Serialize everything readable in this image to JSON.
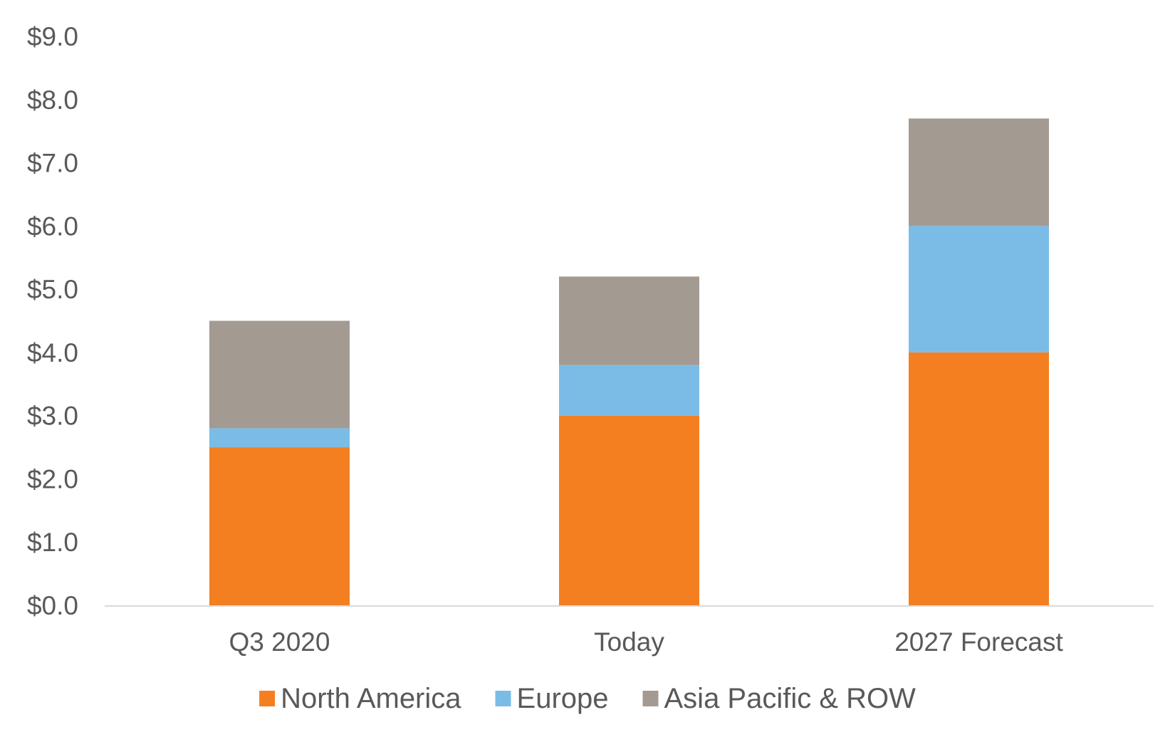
{
  "chart_data": {
    "type": "bar",
    "stacked": true,
    "title": "",
    "xlabel": "",
    "ylabel": "",
    "categories": [
      "Q3 2020",
      "Today",
      "2027 Forecast"
    ],
    "series": [
      {
        "name": "North America",
        "color": "#F47F21",
        "values": [
          2.5,
          3.0,
          4.0
        ]
      },
      {
        "name": "Europe",
        "color": "#7BBCE7",
        "values": [
          0.3,
          0.8,
          2.0
        ]
      },
      {
        "name": "Asia Pacific & ROW",
        "color": "#A39A92",
        "values": [
          1.7,
          1.4,
          1.7
        ]
      }
    ],
    "ylim": [
      0,
      9
    ],
    "yticks": [
      0,
      1,
      2,
      3,
      4,
      5,
      6,
      7,
      8,
      9
    ],
    "ytick_labels": [
      "$0.0",
      "$1.0",
      "$2.0",
      "$3.0",
      "$4.0",
      "$5.0",
      "$6.0",
      "$7.0",
      "$8.0",
      "$9.0"
    ],
    "grid": false,
    "legend_position": "bottom"
  }
}
